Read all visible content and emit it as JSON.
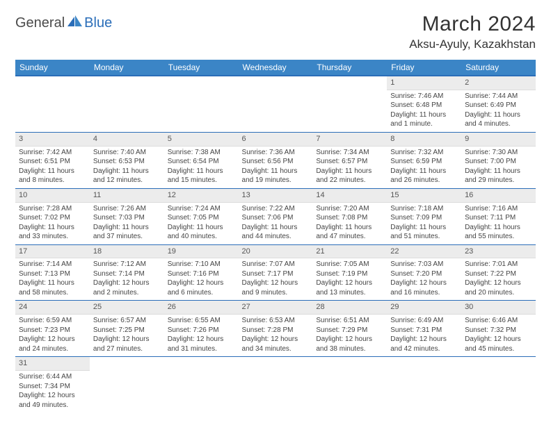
{
  "brand": {
    "part1": "General",
    "part2": "Blue"
  },
  "title": "March 2024",
  "location": "Aksu-Ayuly, Kazakhstan",
  "colors": {
    "header_bg": "#3b85c6",
    "header_border": "#2a6db8",
    "daynum_bg": "#ececec",
    "cell_border": "#2a6db8",
    "text": "#333333"
  },
  "weekdays": [
    "Sunday",
    "Monday",
    "Tuesday",
    "Wednesday",
    "Thursday",
    "Friday",
    "Saturday"
  ],
  "weeks": [
    [
      {
        "empty": true
      },
      {
        "empty": true
      },
      {
        "empty": true
      },
      {
        "empty": true
      },
      {
        "empty": true
      },
      {
        "n": "1",
        "sunrise": "Sunrise: 7:46 AM",
        "sunset": "Sunset: 6:48 PM",
        "daylight": "Daylight: 11 hours and 1 minute."
      },
      {
        "n": "2",
        "sunrise": "Sunrise: 7:44 AM",
        "sunset": "Sunset: 6:49 PM",
        "daylight": "Daylight: 11 hours and 4 minutes."
      }
    ],
    [
      {
        "n": "3",
        "sunrise": "Sunrise: 7:42 AM",
        "sunset": "Sunset: 6:51 PM",
        "daylight": "Daylight: 11 hours and 8 minutes."
      },
      {
        "n": "4",
        "sunrise": "Sunrise: 7:40 AM",
        "sunset": "Sunset: 6:53 PM",
        "daylight": "Daylight: 11 hours and 12 minutes."
      },
      {
        "n": "5",
        "sunrise": "Sunrise: 7:38 AM",
        "sunset": "Sunset: 6:54 PM",
        "daylight": "Daylight: 11 hours and 15 minutes."
      },
      {
        "n": "6",
        "sunrise": "Sunrise: 7:36 AM",
        "sunset": "Sunset: 6:56 PM",
        "daylight": "Daylight: 11 hours and 19 minutes."
      },
      {
        "n": "7",
        "sunrise": "Sunrise: 7:34 AM",
        "sunset": "Sunset: 6:57 PM",
        "daylight": "Daylight: 11 hours and 22 minutes."
      },
      {
        "n": "8",
        "sunrise": "Sunrise: 7:32 AM",
        "sunset": "Sunset: 6:59 PM",
        "daylight": "Daylight: 11 hours and 26 minutes."
      },
      {
        "n": "9",
        "sunrise": "Sunrise: 7:30 AM",
        "sunset": "Sunset: 7:00 PM",
        "daylight": "Daylight: 11 hours and 29 minutes."
      }
    ],
    [
      {
        "n": "10",
        "sunrise": "Sunrise: 7:28 AM",
        "sunset": "Sunset: 7:02 PM",
        "daylight": "Daylight: 11 hours and 33 minutes."
      },
      {
        "n": "11",
        "sunrise": "Sunrise: 7:26 AM",
        "sunset": "Sunset: 7:03 PM",
        "daylight": "Daylight: 11 hours and 37 minutes."
      },
      {
        "n": "12",
        "sunrise": "Sunrise: 7:24 AM",
        "sunset": "Sunset: 7:05 PM",
        "daylight": "Daylight: 11 hours and 40 minutes."
      },
      {
        "n": "13",
        "sunrise": "Sunrise: 7:22 AM",
        "sunset": "Sunset: 7:06 PM",
        "daylight": "Daylight: 11 hours and 44 minutes."
      },
      {
        "n": "14",
        "sunrise": "Sunrise: 7:20 AM",
        "sunset": "Sunset: 7:08 PM",
        "daylight": "Daylight: 11 hours and 47 minutes."
      },
      {
        "n": "15",
        "sunrise": "Sunrise: 7:18 AM",
        "sunset": "Sunset: 7:09 PM",
        "daylight": "Daylight: 11 hours and 51 minutes."
      },
      {
        "n": "16",
        "sunrise": "Sunrise: 7:16 AM",
        "sunset": "Sunset: 7:11 PM",
        "daylight": "Daylight: 11 hours and 55 minutes."
      }
    ],
    [
      {
        "n": "17",
        "sunrise": "Sunrise: 7:14 AM",
        "sunset": "Sunset: 7:13 PM",
        "daylight": "Daylight: 11 hours and 58 minutes."
      },
      {
        "n": "18",
        "sunrise": "Sunrise: 7:12 AM",
        "sunset": "Sunset: 7:14 PM",
        "daylight": "Daylight: 12 hours and 2 minutes."
      },
      {
        "n": "19",
        "sunrise": "Sunrise: 7:10 AM",
        "sunset": "Sunset: 7:16 PM",
        "daylight": "Daylight: 12 hours and 6 minutes."
      },
      {
        "n": "20",
        "sunrise": "Sunrise: 7:07 AM",
        "sunset": "Sunset: 7:17 PM",
        "daylight": "Daylight: 12 hours and 9 minutes."
      },
      {
        "n": "21",
        "sunrise": "Sunrise: 7:05 AM",
        "sunset": "Sunset: 7:19 PM",
        "daylight": "Daylight: 12 hours and 13 minutes."
      },
      {
        "n": "22",
        "sunrise": "Sunrise: 7:03 AM",
        "sunset": "Sunset: 7:20 PM",
        "daylight": "Daylight: 12 hours and 16 minutes."
      },
      {
        "n": "23",
        "sunrise": "Sunrise: 7:01 AM",
        "sunset": "Sunset: 7:22 PM",
        "daylight": "Daylight: 12 hours and 20 minutes."
      }
    ],
    [
      {
        "n": "24",
        "sunrise": "Sunrise: 6:59 AM",
        "sunset": "Sunset: 7:23 PM",
        "daylight": "Daylight: 12 hours and 24 minutes."
      },
      {
        "n": "25",
        "sunrise": "Sunrise: 6:57 AM",
        "sunset": "Sunset: 7:25 PM",
        "daylight": "Daylight: 12 hours and 27 minutes."
      },
      {
        "n": "26",
        "sunrise": "Sunrise: 6:55 AM",
        "sunset": "Sunset: 7:26 PM",
        "daylight": "Daylight: 12 hours and 31 minutes."
      },
      {
        "n": "27",
        "sunrise": "Sunrise: 6:53 AM",
        "sunset": "Sunset: 7:28 PM",
        "daylight": "Daylight: 12 hours and 34 minutes."
      },
      {
        "n": "28",
        "sunrise": "Sunrise: 6:51 AM",
        "sunset": "Sunset: 7:29 PM",
        "daylight": "Daylight: 12 hours and 38 minutes."
      },
      {
        "n": "29",
        "sunrise": "Sunrise: 6:49 AM",
        "sunset": "Sunset: 7:31 PM",
        "daylight": "Daylight: 12 hours and 42 minutes."
      },
      {
        "n": "30",
        "sunrise": "Sunrise: 6:46 AM",
        "sunset": "Sunset: 7:32 PM",
        "daylight": "Daylight: 12 hours and 45 minutes."
      }
    ],
    [
      {
        "n": "31",
        "sunrise": "Sunrise: 6:44 AM",
        "sunset": "Sunset: 7:34 PM",
        "daylight": "Daylight: 12 hours and 49 minutes."
      },
      {
        "empty": true
      },
      {
        "empty": true
      },
      {
        "empty": true
      },
      {
        "empty": true
      },
      {
        "empty": true
      },
      {
        "empty": true
      }
    ]
  ]
}
